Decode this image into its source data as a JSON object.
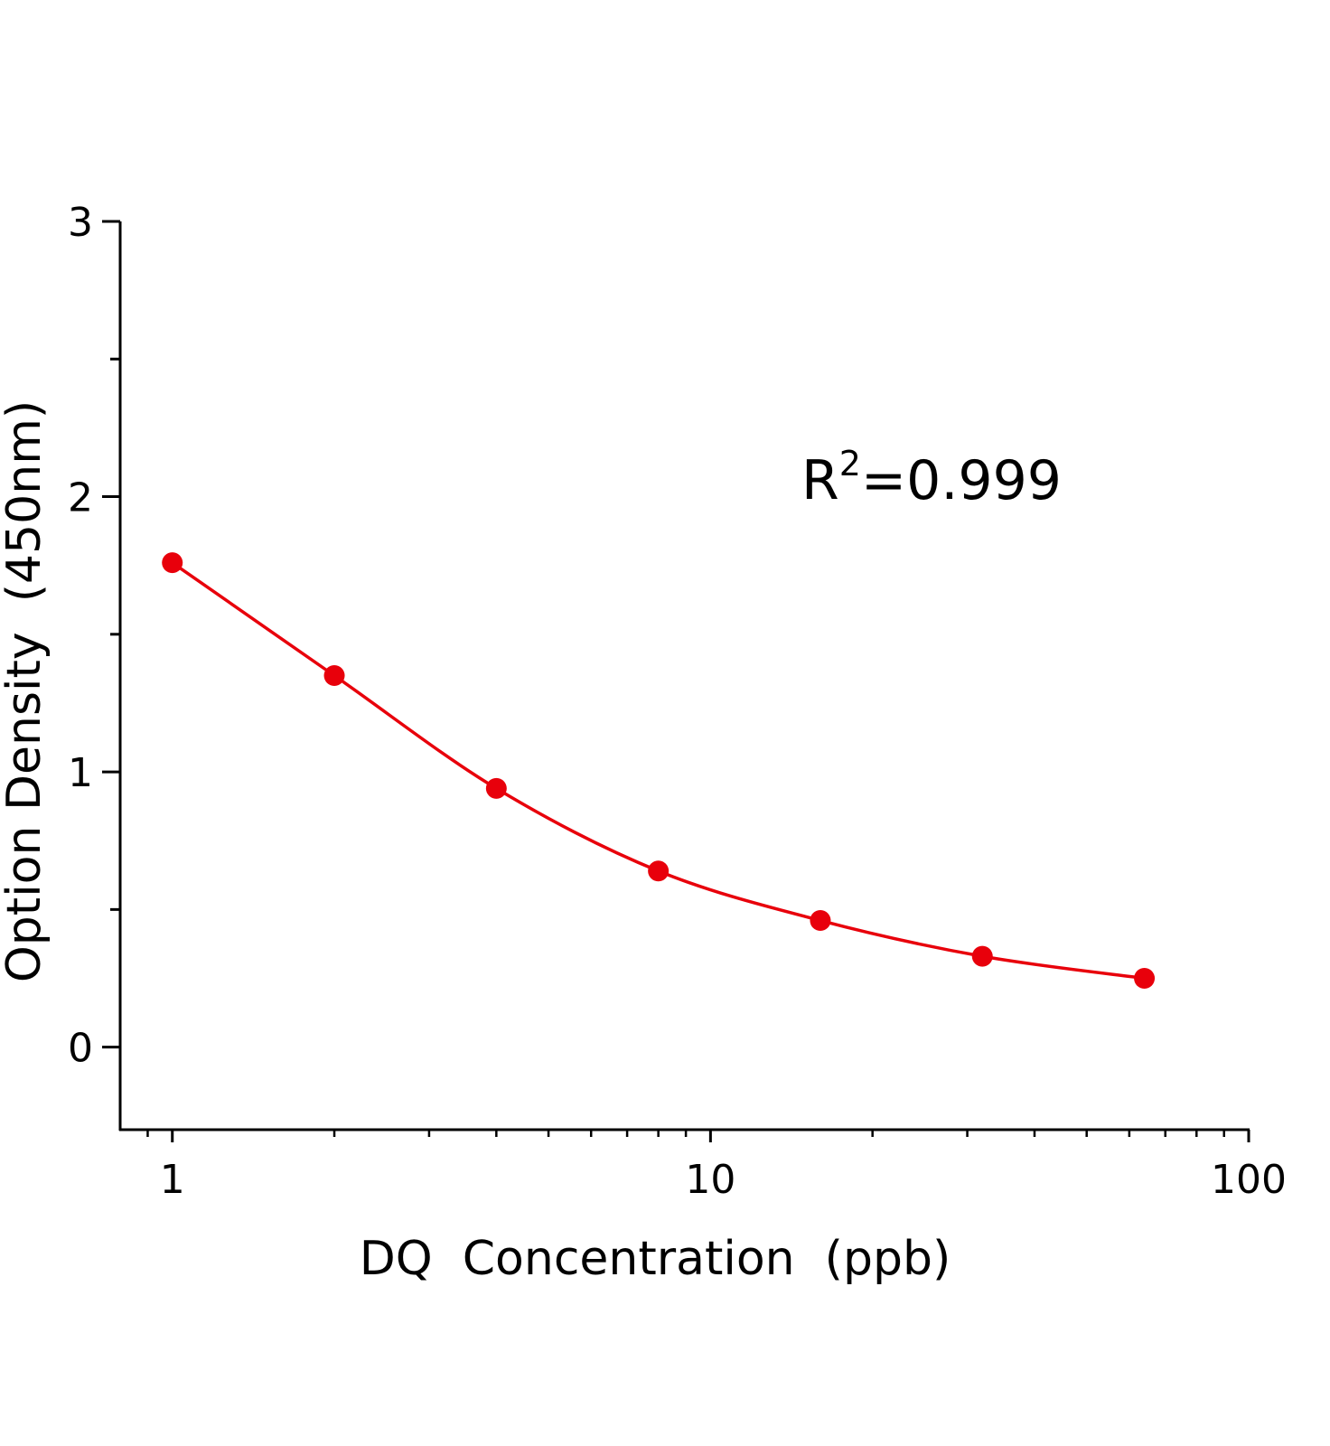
{
  "chart_data": {
    "type": "scatter",
    "x_label": "DQ  Concentration  (ppb)",
    "y_label": "Option Density  (450nm)",
    "annotation": {
      "base": "R",
      "sup": "2",
      "text": "=0.999"
    },
    "x": [
      1,
      2,
      4,
      8,
      16,
      32,
      64
    ],
    "series": [
      {
        "color": "#e8000b",
        "values": [
          1.76,
          1.35,
          0.94,
          0.64,
          0.46,
          0.33,
          0.25
        ]
      }
    ],
    "xlim": [
      0.8,
      100
    ],
    "xticks": [
      1,
      10,
      100
    ],
    "xminorticks": [
      0.9,
      2,
      3,
      4,
      5,
      6,
      7,
      8,
      9,
      20,
      30,
      40,
      50,
      60,
      70,
      80,
      90
    ],
    "ylim": [
      -0.3,
      3
    ],
    "yticks": [
      0,
      1,
      2,
      3
    ],
    "yminorticks": [
      0.5,
      1.5,
      2.5
    ],
    "xscale": "log",
    "grid": false,
    "smooth_line": true
  }
}
